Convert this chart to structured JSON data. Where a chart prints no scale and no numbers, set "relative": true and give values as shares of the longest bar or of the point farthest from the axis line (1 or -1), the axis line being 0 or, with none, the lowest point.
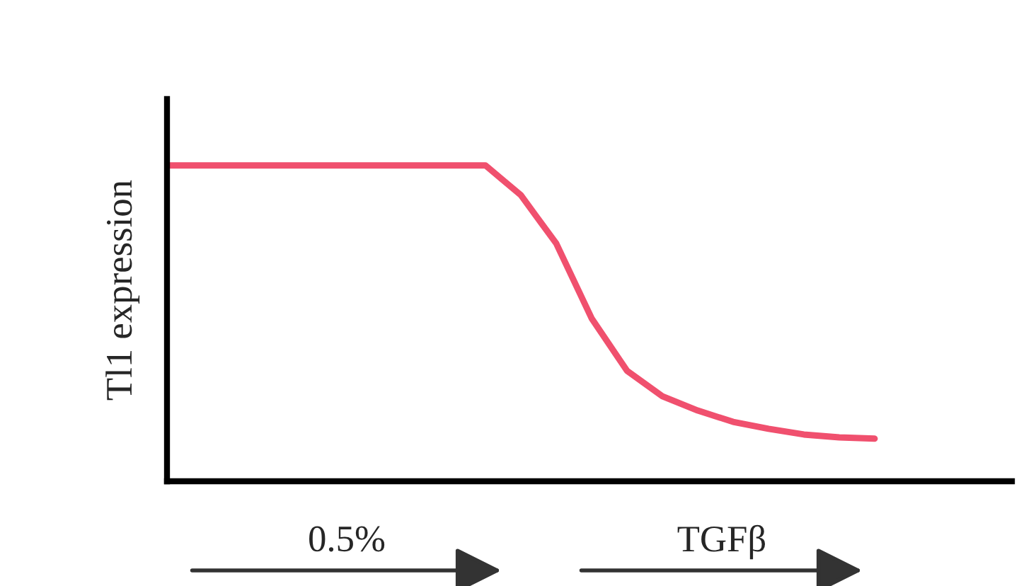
{
  "chart_data": {
    "type": "line",
    "relative": true,
    "ylabel": "Tl1 expression",
    "categories": [
      null,
      null,
      null,
      null,
      null,
      null,
      null,
      null,
      null,
      null,
      null,
      null,
      null,
      null,
      null,
      null,
      null,
      null,
      null,
      null,
      null
    ],
    "series": [
      {
        "color": "#f0506e",
        "values": [
          1.0,
          1.0,
          1.0,
          1.0,
          1.0,
          1.0,
          1.0,
          1.0,
          1.0,
          1.0,
          0.906,
          0.753,
          0.516,
          0.35,
          0.269,
          0.224,
          0.188,
          0.166,
          0.148,
          0.139,
          0.135
        ]
      }
    ],
    "annotations": [
      "0.5%",
      "TGFβ"
    ],
    "grid": false,
    "legend": false,
    "marker": "none",
    "line_style": "solid"
  }
}
